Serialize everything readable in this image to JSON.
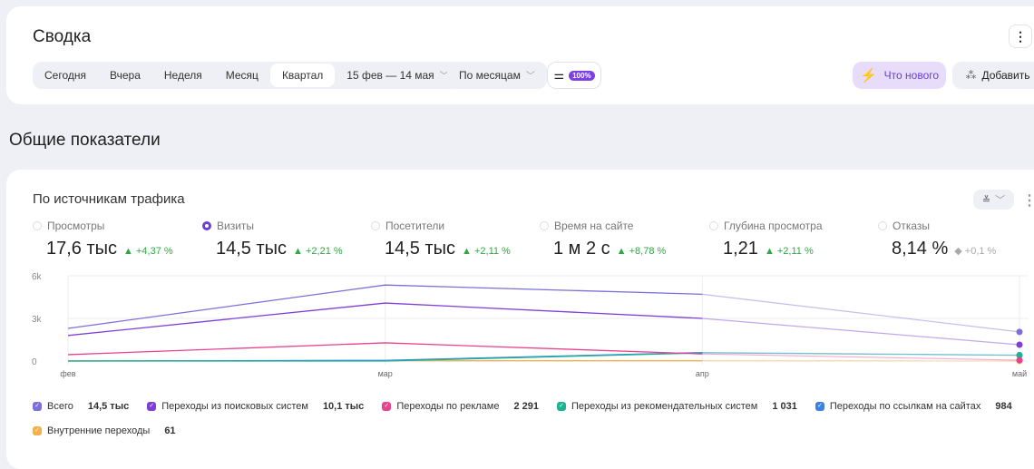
{
  "header": {
    "title": "Сводка",
    "periods": [
      "Сегодня",
      "Вчера",
      "Неделя",
      "Месяц",
      "Квартал"
    ],
    "active_period": "Квартал",
    "date_range": "15 фев — 14 мая",
    "grouping": "По месяцам",
    "filter_badge": "100%",
    "whats_new": "Что нового",
    "add": "Добавить"
  },
  "section_title": "Общие показатели",
  "widget": {
    "title": "По источникам трафика",
    "metrics": [
      {
        "label": "Просмотры",
        "value": "17,6 тыс",
        "delta": "▲ +4,37 %",
        "selected": false
      },
      {
        "label": "Визиты",
        "value": "14,5 тыс",
        "delta": "▲ +2,21 %",
        "selected": true
      },
      {
        "label": "Посетители",
        "value": "14,5 тыс",
        "delta": "▲ +2,11 %",
        "selected": false
      },
      {
        "label": "Время на сайте",
        "value": "1 м 2 с",
        "delta": "▲ +8,78 %",
        "selected": false
      },
      {
        "label": "Глубина просмотра",
        "value": "1,21",
        "delta": "▲ +2,11 %",
        "selected": false
      },
      {
        "label": "Отказы",
        "value": "8,14 %",
        "delta": "◆ +0,1 %",
        "selected": false
      }
    ]
  },
  "chart_data": {
    "type": "line",
    "x": [
      "фев",
      "мар",
      "апр",
      "май"
    ],
    "yticks": [
      "0",
      "3k",
      "6k"
    ],
    "ylim": [
      0,
      6000
    ],
    "series": [
      {
        "name": "Всего",
        "total": "14,5 тыс",
        "color": "#7b6fd9",
        "values": [
          2300,
          5350,
          4700,
          2050
        ]
      },
      {
        "name": "Переходы из поисковых систем",
        "total": "10,1 тыс",
        "color": "#7e3fd6",
        "values": [
          1800,
          4080,
          3000,
          1150
        ]
      },
      {
        "name": "Переходы по рекламе",
        "total": "2 291",
        "color": "#e8438f",
        "values": [
          450,
          1280,
          500,
          60
        ]
      },
      {
        "name": "Переходы из рекомендательных систем",
        "total": "1 031",
        "color": "#1fb394",
        "values": [
          0,
          0,
          570,
          400
        ]
      },
      {
        "name": "Переходы по ссылкам на сайтах",
        "total": "984",
        "color": "#3b82e6",
        "values": [
          0,
          50,
          600,
          420
        ]
      },
      {
        "name": "Внутренние переходы",
        "total": "61",
        "color": "#f5b04c",
        "values": [
          20,
          20,
          20,
          10
        ]
      }
    ]
  }
}
